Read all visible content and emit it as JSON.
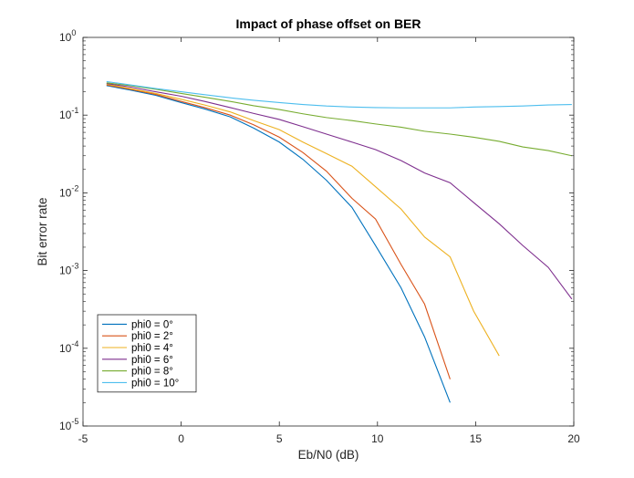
{
  "chart_data": {
    "type": "line",
    "title": "Impact of phase offset on BER",
    "xlabel": "Eb/N0 (dB)",
    "ylabel": "Bit error rate",
    "xlim": [
      -5,
      20
    ],
    "ylim": [
      1e-05,
      1
    ],
    "yscale": "log",
    "xticks": [
      -5,
      0,
      5,
      10,
      15,
      20
    ],
    "xtick_labels": [
      "-5",
      "0",
      "5",
      "10",
      "15",
      "20"
    ],
    "yticks": [
      1e-05,
      0.0001,
      0.001,
      0.01,
      0.1,
      1
    ],
    "ytick_labels": [
      {
        "base": "10",
        "exp": "-5"
      },
      {
        "base": "10",
        "exp": "-4"
      },
      {
        "base": "10",
        "exp": "-3"
      },
      {
        "base": "10",
        "exp": "-2"
      },
      {
        "base": "10",
        "exp": "-1"
      },
      {
        "base": "10",
        "exp": "0"
      }
    ],
    "grid": false,
    "legend_position": "bottom-left",
    "series": [
      {
        "name": "phi0 = 0°",
        "color": "#0072BD",
        "x": [
          -3.8,
          -2.6,
          -1.3,
          0,
          1.2,
          2.5,
          3.7,
          5,
          6.2,
          7.4,
          8.7,
          9.9,
          11.2,
          12.4,
          13.7
        ],
        "y": [
          0.24,
          0.21,
          0.18,
          0.145,
          0.12,
          0.095,
          0.068,
          0.045,
          0.027,
          0.0145,
          0.0065,
          0.0021,
          0.0006,
          0.00014,
          2e-05
        ]
      },
      {
        "name": "phi0 = 2°",
        "color": "#D95319",
        "x": [
          -3.8,
          -2.6,
          -1.3,
          0,
          1.2,
          2.5,
          3.7,
          5,
          6.2,
          7.4,
          8.7,
          9.9,
          11.2,
          12.4,
          13.7
        ],
        "y": [
          0.245,
          0.215,
          0.185,
          0.15,
          0.125,
          0.1,
          0.075,
          0.052,
          0.033,
          0.019,
          0.0085,
          0.0046,
          0.0012,
          0.00037,
          4e-05
        ]
      },
      {
        "name": "phi0 = 4°",
        "color": "#EDB120",
        "x": [
          -3.8,
          -2.6,
          -1.3,
          0,
          1.2,
          2.5,
          3.7,
          5,
          6.2,
          7.4,
          8.7,
          9.9,
          11.2,
          12.4,
          13.7,
          14.9,
          16.2
        ],
        "y": [
          0.25,
          0.22,
          0.19,
          0.16,
          0.135,
          0.11,
          0.085,
          0.065,
          0.045,
          0.032,
          0.022,
          0.012,
          0.0062,
          0.0027,
          0.0015,
          0.0003,
          8e-05
        ]
      },
      {
        "name": "phi0 = 6°",
        "color": "#7E2F8E",
        "x": [
          -3.8,
          -2.6,
          -1.3,
          0,
          1.2,
          2.5,
          3.7,
          5,
          6.2,
          7.4,
          8.7,
          9.9,
          11.2,
          12.4,
          13.7,
          14.9,
          16.2,
          17.4,
          18.7,
          19.9
        ],
        "y": [
          0.255,
          0.23,
          0.2,
          0.175,
          0.15,
          0.125,
          0.105,
          0.088,
          0.071,
          0.057,
          0.045,
          0.036,
          0.026,
          0.018,
          0.0135,
          0.0075,
          0.004,
          0.0021,
          0.0011,
          0.00043
        ]
      },
      {
        "name": "phi0 = 8°",
        "color": "#77AC30",
        "x": [
          -3.8,
          -2.6,
          -1.3,
          0,
          1.2,
          2.5,
          3.7,
          5,
          6.2,
          7.4,
          8.7,
          9.9,
          11.2,
          12.4,
          13.7,
          14.9,
          16.2,
          17.4,
          18.7,
          19.9
        ],
        "y": [
          0.26,
          0.24,
          0.215,
          0.19,
          0.17,
          0.15,
          0.132,
          0.118,
          0.104,
          0.093,
          0.085,
          0.077,
          0.07,
          0.062,
          0.057,
          0.052,
          0.046,
          0.039,
          0.035,
          0.03
        ]
      },
      {
        "name": "phi0 = 10°",
        "color": "#4DBEEE",
        "x": [
          -3.8,
          -2.6,
          -1.3,
          0,
          1.2,
          2.5,
          3.7,
          5,
          6.2,
          7.4,
          8.7,
          9.9,
          11.2,
          12.4,
          13.7,
          14.9,
          16.2,
          17.4,
          18.7,
          19.9
        ],
        "y": [
          0.27,
          0.245,
          0.22,
          0.2,
          0.183,
          0.167,
          0.155,
          0.145,
          0.137,
          0.131,
          0.127,
          0.125,
          0.124,
          0.124,
          0.124,
          0.127,
          0.129,
          0.131,
          0.135,
          0.137
        ]
      }
    ]
  }
}
